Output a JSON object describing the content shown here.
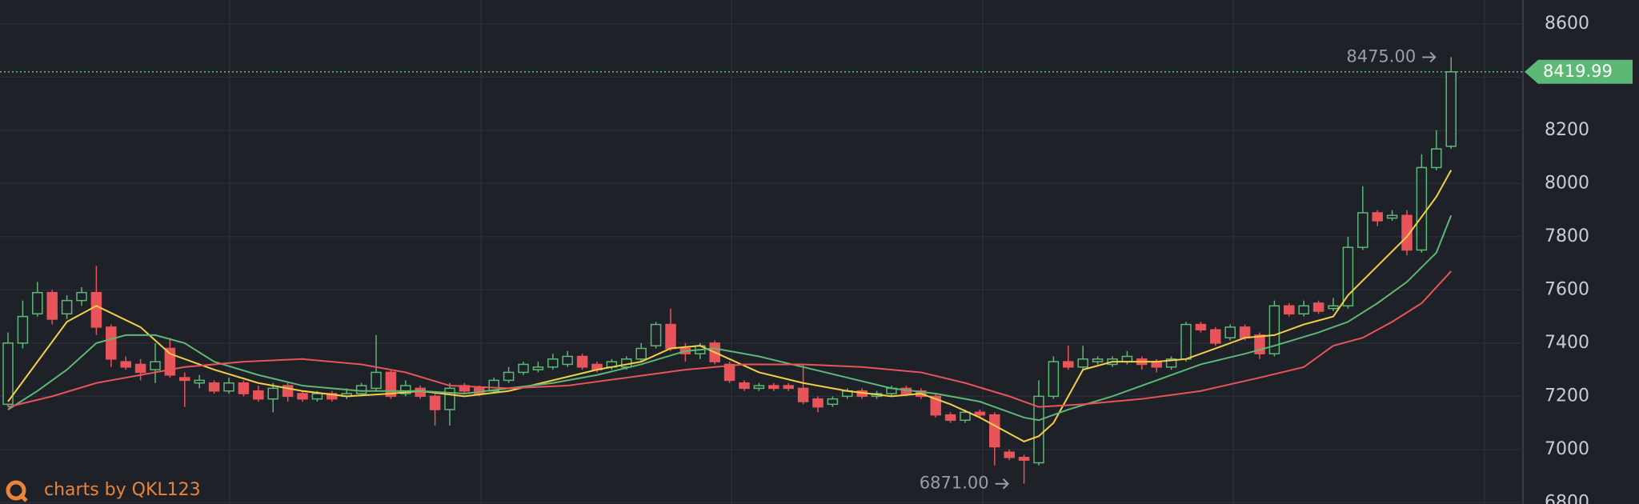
{
  "chart_data": {
    "type": "candlestick",
    "ylim": [
      6795,
      8690
    ],
    "yticks": [
      6800,
      7000,
      7200,
      7400,
      7600,
      7800,
      8000,
      8200,
      8400,
      8600
    ],
    "grid": true,
    "up_color": "#5cb874",
    "down_color": "#e9545a",
    "open": [
      7170,
      7400,
      7510,
      7590,
      7510,
      7560,
      7590,
      7460,
      7330,
      7320,
      7300,
      7380,
      7270,
      7250,
      7250,
      7220,
      7250,
      7220,
      7190,
      7240,
      7210,
      7190,
      7210,
      7200,
      7210,
      7230,
      7290,
      7210,
      7230,
      7200,
      7150,
      7240,
      7230,
      7220,
      7260,
      7290,
      7300,
      7310,
      7320,
      7350,
      7320,
      7310,
      7310,
      7340,
      7390,
      7470,
      7380,
      7360,
      7400,
      7320,
      7250,
      7230,
      7240,
      7240,
      7230,
      7190,
      7170,
      7200,
      7220,
      7200,
      7210,
      7230,
      7220,
      7200,
      7130,
      7110,
      7140,
      7130,
      6990,
      6970,
      6950,
      7200,
      7330,
      7310,
      7330,
      7320,
      7330,
      7340,
      7330,
      7310,
      7340,
      7470,
      7450,
      7420,
      7460,
      7430,
      7360,
      7540,
      7510,
      7550,
      7530,
      7540,
      7760,
      7890,
      7870,
      7880,
      7750,
      8060,
      8140
    ],
    "high": [
      7440,
      7560,
      7630,
      7600,
      7580,
      7610,
      7690,
      7470,
      7350,
      7340,
      7400,
      7420,
      7290,
      7280,
      7260,
      7270,
      7260,
      7240,
      7250,
      7250,
      7220,
      7220,
      7220,
      7230,
      7250,
      7430,
      7300,
      7260,
      7240,
      7210,
      7250,
      7250,
      7240,
      7270,
      7310,
      7330,
      7330,
      7360,
      7370,
      7360,
      7330,
      7340,
      7350,
      7400,
      7480,
      7530,
      7400,
      7400,
      7410,
      7330,
      7260,
      7250,
      7250,
      7250,
      7320,
      7200,
      7200,
      7230,
      7230,
      7220,
      7240,
      7240,
      7230,
      7210,
      7140,
      7150,
      7150,
      7140,
      7000,
      6980,
      7260,
      7350,
      7390,
      7390,
      7350,
      7350,
      7370,
      7350,
      7340,
      7350,
      7480,
      7480,
      7460,
      7470,
      7470,
      7440,
      7560,
      7550,
      7560,
      7560,
      7570,
      7800,
      7990,
      7900,
      7900,
      7900,
      8110,
      8200,
      8475
    ],
    "low": [
      7160,
      7380,
      7500,
      7470,
      7490,
      7540,
      7430,
      7310,
      7300,
      7260,
      7250,
      7270,
      7160,
      7230,
      7210,
      7210,
      7200,
      7180,
      7140,
      7180,
      7180,
      7180,
      7180,
      7190,
      7200,
      7220,
      7190,
      7200,
      7190,
      7090,
      7090,
      7210,
      7200,
      7210,
      7250,
      7280,
      7290,
      7300,
      7310,
      7300,
      7290,
      7300,
      7300,
      7330,
      7380,
      7370,
      7330,
      7340,
      7320,
      7250,
      7220,
      7220,
      7220,
      7220,
      7170,
      7140,
      7160,
      7190,
      7190,
      7190,
      7200,
      7200,
      7190,
      7120,
      7100,
      7100,
      7120,
      6940,
      6960,
      6871,
      6940,
      7190,
      7300,
      7300,
      7320,
      7310,
      7320,
      7300,
      7290,
      7300,
      7330,
      7440,
      7390,
      7410,
      7410,
      7340,
      7350,
      7500,
      7500,
      7510,
      7520,
      7530,
      7750,
      7840,
      7860,
      7730,
      7740,
      8050,
      8130
    ],
    "close": [
      7400,
      7500,
      7590,
      7490,
      7560,
      7590,
      7460,
      7340,
      7310,
      7290,
      7330,
      7280,
      7260,
      7260,
      7220,
      7250,
      7210,
      7190,
      7230,
      7200,
      7190,
      7210,
      7190,
      7210,
      7240,
      7290,
      7200,
      7240,
      7200,
      7150,
      7230,
      7220,
      7210,
      7260,
      7290,
      7320,
      7310,
      7340,
      7350,
      7310,
      7300,
      7330,
      7340,
      7380,
      7470,
      7380,
      7360,
      7390,
      7330,
      7260,
      7230,
      7240,
      7230,
      7230,
      7180,
      7160,
      7190,
      7220,
      7200,
      7210,
      7230,
      7210,
      7200,
      7130,
      7110,
      7140,
      7130,
      7010,
      6970,
      6960,
      7200,
      7330,
      7310,
      7340,
      7340,
      7340,
      7350,
      7320,
      7310,
      7340,
      7470,
      7450,
      7400,
      7460,
      7420,
      7360,
      7540,
      7510,
      7540,
      7520,
      7540,
      7760,
      7890,
      7860,
      7880,
      7750,
      8060,
      8130,
      8419.99
    ],
    "ma_lines": [
      {
        "color": "#f2d046",
        "x": [
          0,
          2,
          4,
          6,
          9,
          11,
          14,
          17,
          20,
          23,
          26,
          28,
          31,
          34,
          37,
          40,
          43,
          45,
          47,
          49,
          51,
          54,
          57,
          60,
          62,
          64,
          66,
          68,
          69,
          70,
          71,
          72,
          73,
          75,
          78,
          80,
          82,
          84,
          86,
          88,
          90,
          91,
          93,
          95,
          97,
          98
        ],
        "values": [
          7180,
          7330,
          7480,
          7540,
          7460,
          7360,
          7300,
          7250,
          7220,
          7200,
          7210,
          7220,
          7200,
          7220,
          7260,
          7300,
          7330,
          7380,
          7390,
          7340,
          7290,
          7250,
          7220,
          7200,
          7210,
          7170,
          7120,
          7060,
          7030,
          7050,
          7100,
          7200,
          7300,
          7330,
          7330,
          7340,
          7380,
          7420,
          7430,
          7470,
          7500,
          7580,
          7690,
          7800,
          7950,
          8050
        ]
      },
      {
        "color": "#5cb874",
        "x": [
          0,
          2,
          4,
          6,
          8,
          10,
          12,
          14,
          17,
          20,
          24,
          28,
          31,
          34,
          37,
          40,
          43,
          46,
          48,
          51,
          54,
          57,
          60,
          63,
          66,
          69,
          70,
          72,
          75,
          78,
          81,
          84,
          86,
          89,
          91,
          93,
          95,
          97,
          98
        ],
        "values": [
          7150,
          7220,
          7300,
          7400,
          7430,
          7430,
          7400,
          7330,
          7280,
          7240,
          7220,
          7220,
          7210,
          7230,
          7250,
          7280,
          7320,
          7370,
          7380,
          7350,
          7310,
          7270,
          7230,
          7210,
          7180,
          7120,
          7110,
          7150,
          7200,
          7260,
          7320,
          7360,
          7390,
          7440,
          7480,
          7550,
          7630,
          7740,
          7880
        ]
      },
      {
        "color": "#e9545a",
        "x": [
          0,
          3,
          6,
          9,
          12,
          16,
          20,
          24,
          27,
          30,
          34,
          38,
          42,
          46,
          50,
          54,
          58,
          62,
          65,
          68,
          70,
          73,
          77,
          81,
          85,
          88,
          90,
          92,
          94,
          96,
          98
        ],
        "values": [
          7160,
          7200,
          7250,
          7280,
          7310,
          7330,
          7340,
          7320,
          7290,
          7240,
          7230,
          7240,
          7270,
          7300,
          7320,
          7320,
          7310,
          7290,
          7250,
          7200,
          7160,
          7170,
          7190,
          7220,
          7270,
          7310,
          7390,
          7420,
          7480,
          7550,
          7670
        ]
      }
    ],
    "last_price": 8419.99,
    "max_annotation": {
      "index": 98,
      "value": 8475,
      "label": "8475.00"
    },
    "min_annotation": {
      "index": 69,
      "value": 6871,
      "label": "6871.00"
    },
    "watermark": "charts by QKL123"
  }
}
